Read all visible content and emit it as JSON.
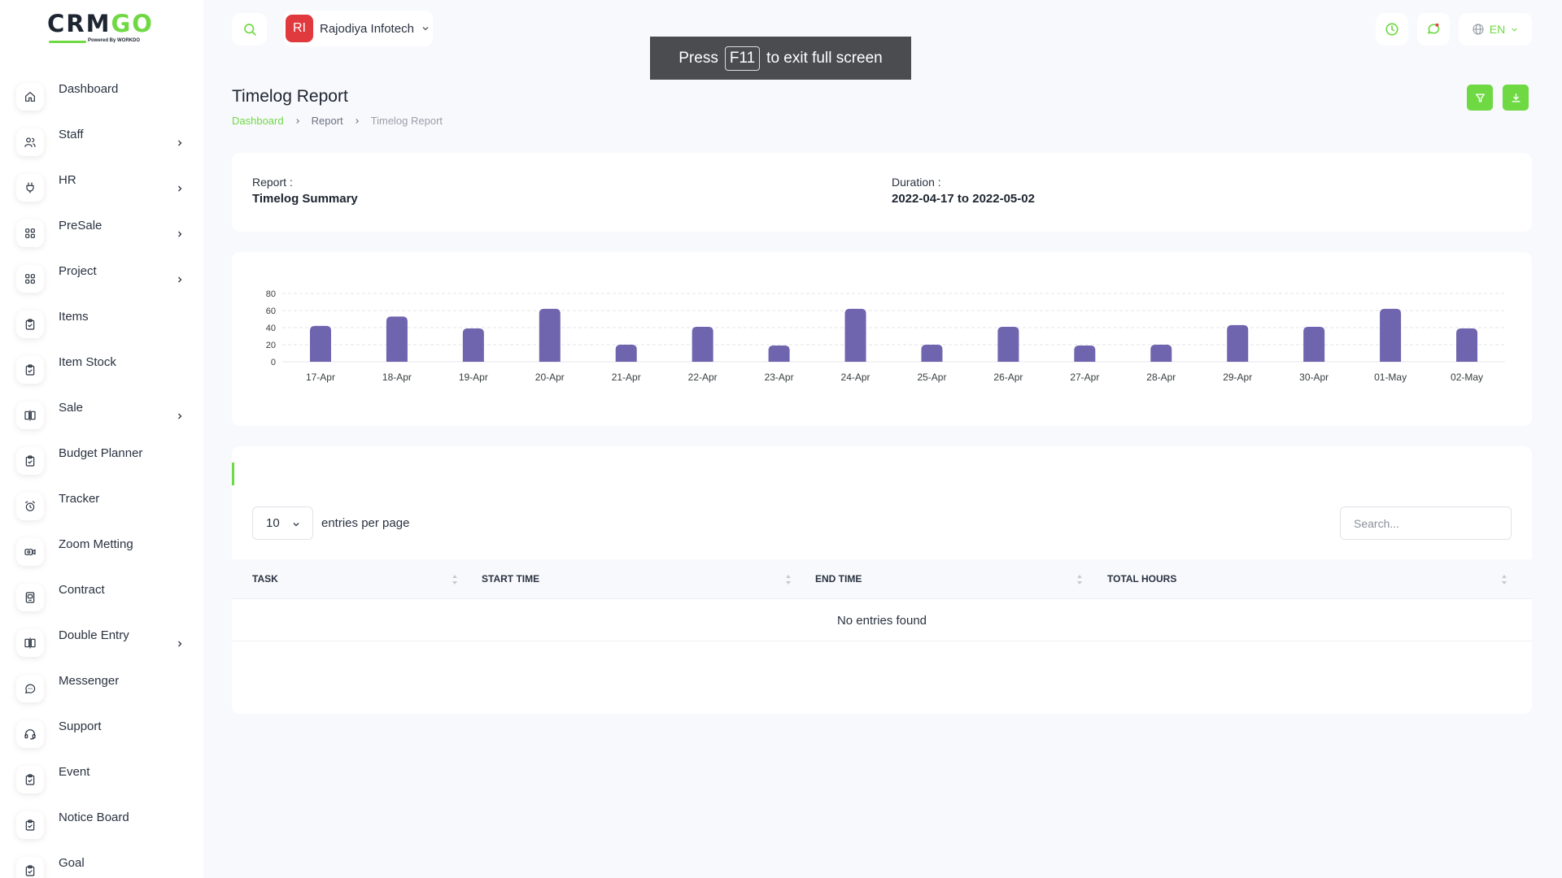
{
  "brand": {
    "logo_text": "CRMGO",
    "powered_by": "Powered By WORKDO"
  },
  "topbar": {
    "workspace_initials": "RI",
    "workspace_name": "Rajodiya Infotech",
    "language": "EN",
    "fullscreen_press": "Press",
    "fullscreen_key": "F11",
    "fullscreen_hint": "to exit full screen"
  },
  "sidebar": {
    "items": [
      {
        "label": "Dashboard",
        "icon": "home-icon",
        "has_children": false
      },
      {
        "label": "Staff",
        "icon": "users-icon",
        "has_children": true
      },
      {
        "label": "HR",
        "icon": "plug-icon",
        "has_children": true
      },
      {
        "label": "PreSale",
        "icon": "grid-icon",
        "has_children": true
      },
      {
        "label": "Project",
        "icon": "grid-icon",
        "has_children": true
      },
      {
        "label": "Items",
        "icon": "clipboard-icon",
        "has_children": false
      },
      {
        "label": "Item Stock",
        "icon": "clipboard-icon",
        "has_children": false
      },
      {
        "label": "Sale",
        "icon": "columns-icon",
        "has_children": true
      },
      {
        "label": "Budget Planner",
        "icon": "clipboard-icon",
        "has_children": false
      },
      {
        "label": "Tracker",
        "icon": "alarm-icon",
        "has_children": false
      },
      {
        "label": "Zoom Metting",
        "icon": "video-icon",
        "has_children": false
      },
      {
        "label": "Contract",
        "icon": "device-icon",
        "has_children": false
      },
      {
        "label": "Double Entry",
        "icon": "columns-icon",
        "has_children": true
      },
      {
        "label": "Messenger",
        "icon": "message-icon",
        "has_children": false
      },
      {
        "label": "Support",
        "icon": "headset-icon",
        "has_children": false
      },
      {
        "label": "Event",
        "icon": "clipboard-icon",
        "has_children": false
      },
      {
        "label": "Notice Board",
        "icon": "clipboard-icon",
        "has_children": false
      },
      {
        "label": "Goal",
        "icon": "clipboard-icon",
        "has_children": false
      }
    ]
  },
  "page": {
    "title": "Timelog Report",
    "breadcrumb": [
      "Dashboard",
      "Report",
      "Timelog Report"
    ]
  },
  "summary": {
    "report_label": "Report :",
    "report_value": "Timelog Summary",
    "duration_label": "Duration :",
    "duration_value": "2022-04-17 to 2022-05-02"
  },
  "chart_data": {
    "type": "bar",
    "categories": [
      "17-Apr",
      "18-Apr",
      "19-Apr",
      "20-Apr",
      "21-Apr",
      "22-Apr",
      "23-Apr",
      "24-Apr",
      "25-Apr",
      "26-Apr",
      "27-Apr",
      "28-Apr",
      "29-Apr",
      "30-Apr",
      "01-May",
      "02-May"
    ],
    "values": [
      42,
      53,
      39,
      62,
      20,
      41,
      19,
      62,
      20,
      41,
      19,
      20,
      43,
      41,
      62,
      39
    ],
    "yticks": [
      0,
      20,
      40,
      60,
      80
    ],
    "ylim": [
      0,
      80
    ],
    "bar_color": "#6f64ae",
    "grid": true,
    "title": "",
    "xlabel": "",
    "ylabel": ""
  },
  "table": {
    "per_page_value": "10",
    "per_page_label": "entries per page",
    "search_placeholder": "Search...",
    "columns": [
      "TASK",
      "START TIME",
      "END TIME",
      "TOTAL HOURS"
    ],
    "empty_message": "No entries found"
  },
  "colors": {
    "accent": "#6fd943",
    "avatar": "#e0393e",
    "bars": "#6f64ae"
  }
}
